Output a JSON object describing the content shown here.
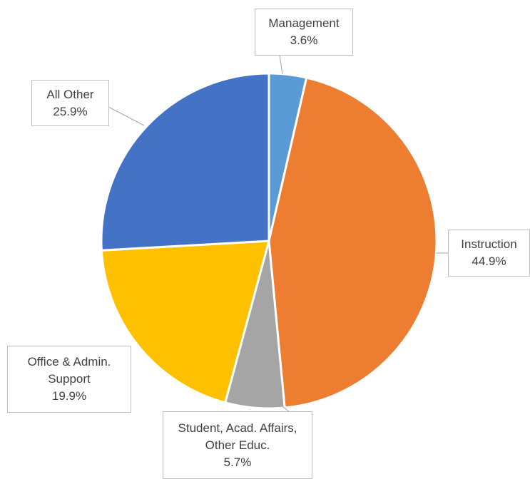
{
  "chart_data": {
    "type": "pie",
    "categories": [
      "Management",
      "Instruction",
      "Student, Acad. Affairs, Other Educ.",
      "Office & Admin. Support",
      "All Other"
    ],
    "values": [
      3.6,
      44.9,
      5.7,
      19.9,
      25.9
    ],
    "value_labels": [
      "3.6%",
      "44.9%",
      "5.7%",
      "19.9%",
      "25.9%"
    ],
    "colors": [
      "#5b9bd5",
      "#ed7d31",
      "#a5a5a5",
      "#ffc000",
      "#4472c4"
    ]
  }
}
